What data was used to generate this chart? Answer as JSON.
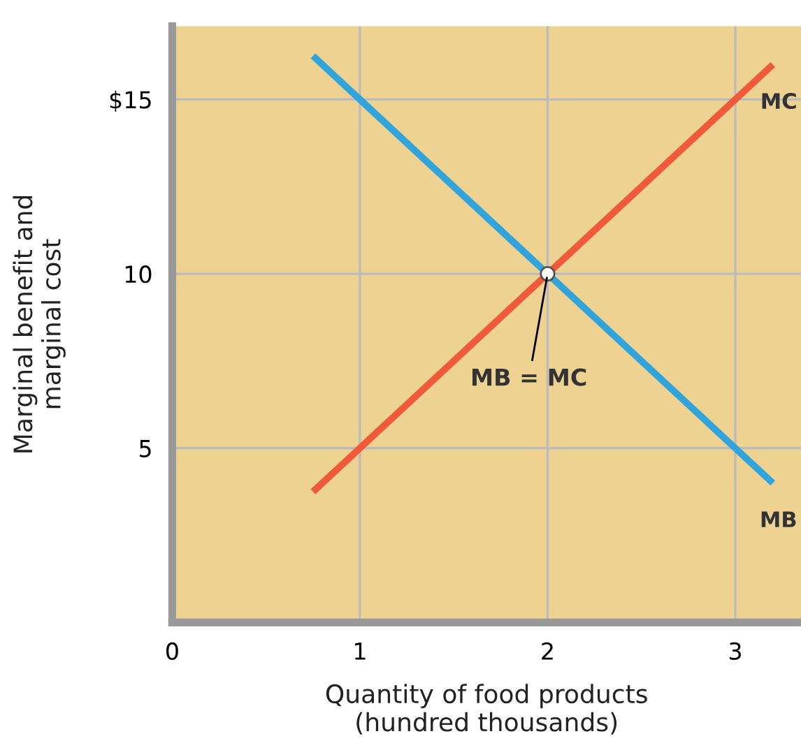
{
  "chart_data": {
    "type": "line",
    "xlabel": "Quantity of food products\n(hundred thousands)",
    "ylabel": "Marginal benefit and\nmarginal cost",
    "x": [
      0.75,
      3.2
    ],
    "series": [
      {
        "name": "MC",
        "color": "#f05a3a",
        "values": [
          3.75,
          16
        ]
      },
      {
        "name": "MB",
        "color": "#31a4dc",
        "values": [
          16.25,
          4
        ]
      }
    ],
    "xlim": [
      0,
      3.35
    ],
    "ylim": [
      0,
      17.1
    ],
    "xticks": [
      0,
      1,
      2,
      3
    ],
    "yticks": [
      5,
      10,
      {
        "value": 15,
        "label": "$15"
      }
    ],
    "grid": true,
    "legend": false,
    "marker": "none",
    "line_style": "solid",
    "annotations": [
      {
        "text": "MB = MC",
        "x": 2,
        "y": 10
      }
    ]
  }
}
